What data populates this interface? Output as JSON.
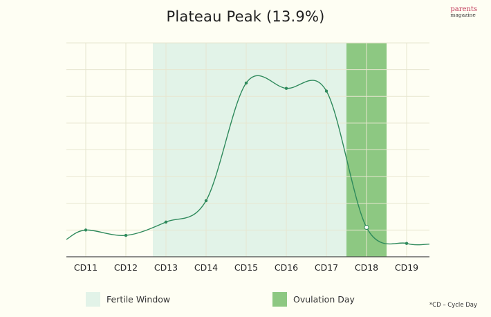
{
  "brand": {
    "line1": "parents",
    "line2": "magazine"
  },
  "chart_data": {
    "type": "line",
    "title": "Plateau Peak (13.9%)",
    "categories": [
      "CD11",
      "CD12",
      "CD13",
      "CD14",
      "CD15",
      "CD16",
      "CD17",
      "CD18",
      "CD19"
    ],
    "series": [
      {
        "values": [
          1.0,
          0.8,
          1.3,
          2.1,
          6.5,
          6.3,
          6.2,
          1.1,
          0.5
        ]
      }
    ],
    "ylim": [
      0,
      8
    ],
    "grid": true,
    "highlights": [
      {
        "label": "Fertile Window",
        "from": "CD13",
        "to": "CD17",
        "color": "#e2f3e8"
      },
      {
        "label": "Ovulation Day",
        "category": "CD18",
        "color": "#8dc882"
      }
    ],
    "legend": [
      {
        "label": "Fertile Window",
        "color": "#e2f3e8"
      },
      {
        "label": "Ovulation Day",
        "color": "#8dc882"
      }
    ],
    "legend_position": "bottom",
    "line_color": "#2f8a5c",
    "footnote": "*CD – Cycle Day"
  }
}
